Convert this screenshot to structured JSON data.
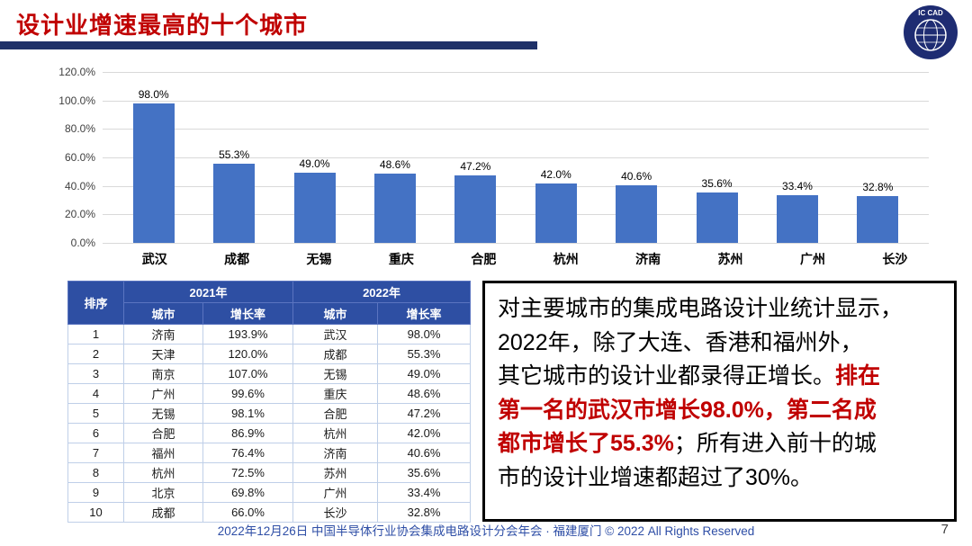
{
  "slide": {
    "title": "设计业增速最高的十个城市",
    "logo_text": "IC CAD",
    "footer": "2022年12月26日 中国半导体行业协会集成电路设计分会年会 · 福建厦门 © 2022 All Rights Reserved",
    "page_number": "7"
  },
  "colors": {
    "title_red": "#C00000",
    "underline_navy": "#1F3168",
    "bar_blue": "#4472C4",
    "table_header_blue": "#2E4FA3",
    "highlight_red": "#C00000",
    "footer_blue": "#2E4EA6"
  },
  "chart_data": {
    "type": "bar",
    "categories": [
      "武汉",
      "成都",
      "无锡",
      "重庆",
      "合肥",
      "杭州",
      "济南",
      "苏州",
      "广州",
      "长沙"
    ],
    "values": [
      98.0,
      55.3,
      49.0,
      48.6,
      47.2,
      42.0,
      40.6,
      35.6,
      33.4,
      32.8
    ],
    "data_labels": [
      "98.0%",
      "55.3%",
      "49.0%",
      "48.6%",
      "47.2%",
      "42.0%",
      "40.6%",
      "35.6%",
      "33.4%",
      "32.8%"
    ],
    "title": "",
    "xlabel": "",
    "ylabel": "",
    "ylim": [
      0,
      120
    ],
    "ytick_labels": [
      "120.0%",
      "100.0%",
      "80.0%",
      "60.0%",
      "40.0%",
      "20.0%",
      "0.0%"
    ],
    "grid": true,
    "legend": false,
    "bar_color": "#4472C4"
  },
  "table": {
    "header": {
      "rank": "排序",
      "y2021": "2021年",
      "y2022": "2022年",
      "city": "城市",
      "rate": "增长率",
      "city2": "城市",
      "rate2": "增长率"
    },
    "rows": [
      {
        "rank": "1",
        "city2021": "济南",
        "rate2021": "193.9%",
        "city2022": "武汉",
        "rate2022": "98.0%"
      },
      {
        "rank": "2",
        "city2021": "天津",
        "rate2021": "120.0%",
        "city2022": "成都",
        "rate2022": "55.3%"
      },
      {
        "rank": "3",
        "city2021": "南京",
        "rate2021": "107.0%",
        "city2022": "无锡",
        "rate2022": "49.0%"
      },
      {
        "rank": "4",
        "city2021": "广州",
        "rate2021": "99.6%",
        "city2022": "重庆",
        "rate2022": "48.6%"
      },
      {
        "rank": "5",
        "city2021": "无锡",
        "rate2021": "98.1%",
        "city2022": "合肥",
        "rate2022": "47.2%"
      },
      {
        "rank": "6",
        "city2021": "合肥",
        "rate2021": "86.9%",
        "city2022": "杭州",
        "rate2022": "42.0%"
      },
      {
        "rank": "7",
        "city2021": "福州",
        "rate2021": "76.4%",
        "city2022": "济南",
        "rate2022": "40.6%"
      },
      {
        "rank": "8",
        "city2021": "杭州",
        "rate2021": "72.5%",
        "city2022": "苏州",
        "rate2022": "35.6%"
      },
      {
        "rank": "9",
        "city2021": "北京",
        "rate2021": "69.8%",
        "city2022": "广州",
        "rate2022": "33.4%"
      },
      {
        "rank": "10",
        "city2021": "成都",
        "rate2021": "66.0%",
        "city2022": "长沙",
        "rate2022": "32.8%"
      }
    ]
  },
  "commentary": {
    "part1": "对主要城市的集成电路设计业统计显示，\n2022年，除了大连、香港和福州外，\n其它城市的设计业都录得正增长。",
    "highlight": "排在\n第一名的武汉市增长98.0%，第二名成\n都市增长了55.3%",
    "part2": "；所有进入前十的城\n市的设计业增速都超过了30%。"
  }
}
